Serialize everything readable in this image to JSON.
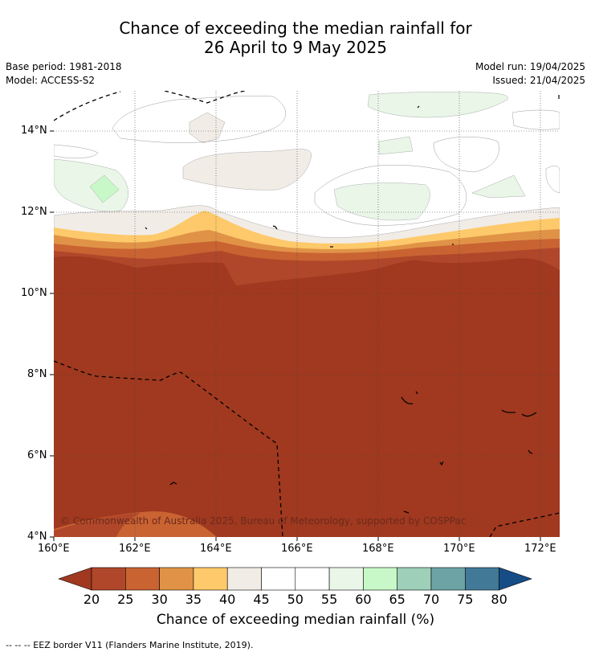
{
  "title": {
    "line1": "Chance of exceeding the median rainfall for",
    "line2": "26 April to 9 May 2025"
  },
  "meta": {
    "base_period": "Base period: 1981-2018",
    "model": "Model: ACCESS-S2",
    "model_run": "Model run: 19/04/2025",
    "issued": "Issued: 21/04/2025"
  },
  "map": {
    "lat_ticks": [
      "14°N",
      "12°N",
      "10°N",
      "8°N",
      "6°N",
      "4°N"
    ],
    "lon_ticks": [
      "160°E",
      "162°E",
      "164°E",
      "166°E",
      "168°E",
      "170°E",
      "172°E"
    ],
    "copyright": "© Commonwealth of Australia 2025, Bureau of Meteorology, supported by COSPPac",
    "footer": "--  --  -- EEZ border V11 (Flanders Marine Institute, 2019)."
  },
  "colorbar": {
    "title": "Chance of exceeding median rainfall (%)",
    "labels": [
      "20",
      "25",
      "30",
      "35",
      "40",
      "45",
      "50",
      "55",
      "60",
      "65",
      "70",
      "75",
      "80"
    ],
    "colors": [
      "#a0391f",
      "#b0472a",
      "#c96332",
      "#e09347",
      "#fdc96a",
      "#f1ece6",
      "#ffffff",
      "#ffffff",
      "#e9f6e8",
      "#c9f8c8",
      "#9ecfb8",
      "#6ea3a6",
      "#427997",
      "#174d86"
    ]
  }
}
